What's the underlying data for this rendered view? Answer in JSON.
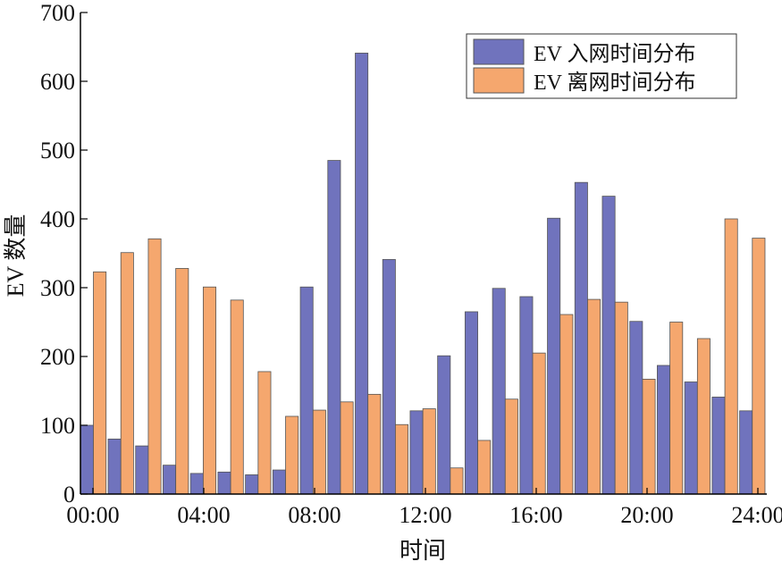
{
  "chart_data": {
    "type": "bar",
    "xlabel": "时间",
    "ylabel": "EV 数量",
    "ylim": [
      0,
      700
    ],
    "yticks": [
      "0",
      "100",
      "200",
      "300",
      "400",
      "500",
      "600",
      "700"
    ],
    "xticks": [
      "00:00",
      "04:00",
      "08:00",
      "12:00",
      "16:00",
      "20:00",
      "24:00"
    ],
    "grid": false,
    "legend_position": "top-right",
    "series": [
      {
        "name": "EV 入网时间分布",
        "color": "#7073bd",
        "values": [
          100,
          80,
          70,
          42,
          30,
          32,
          28,
          35,
          301,
          485,
          641,
          341,
          121,
          201,
          265,
          299,
          287,
          401,
          453,
          433,
          251,
          187,
          163,
          141,
          121
        ]
      },
      {
        "name": "EV 离网时间分布",
        "color": "#f5a76e",
        "values": [
          323,
          351,
          371,
          328,
          301,
          282,
          178,
          113,
          122,
          134,
          145,
          101,
          124,
          38,
          78,
          138,
          205,
          261,
          283,
          279,
          167,
          250,
          226,
          400,
          372
        ]
      }
    ]
  }
}
